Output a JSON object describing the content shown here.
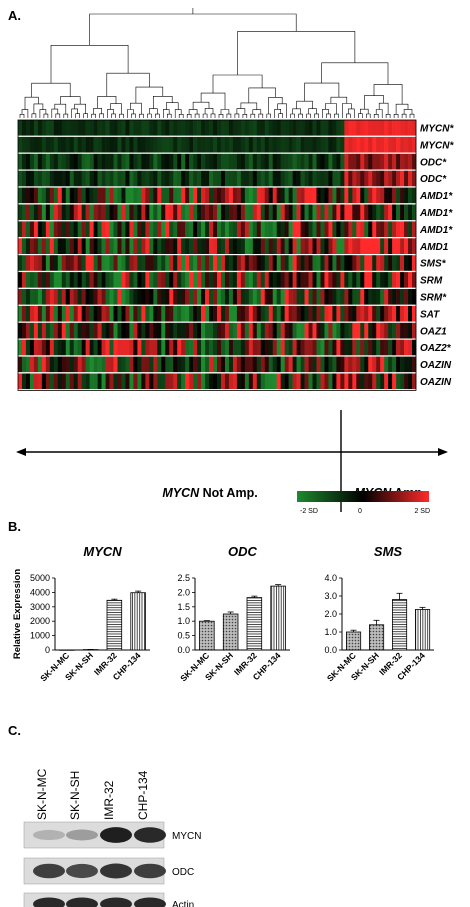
{
  "panels": {
    "a": {
      "label": "A.",
      "gene_rows": [
        "MYCN*",
        "MYCN*",
        "ODC*",
        "ODC*",
        "AMD1*",
        "AMD1*",
        "AMD1*",
        "AMD1",
        "SMS*",
        "SRM",
        "SRM*",
        "SAT",
        "OAZ1",
        "OAZ2*",
        "OAZIN",
        "OAZIN"
      ],
      "groups": {
        "not_amp": {
          "gene": "MYCN",
          "suffix": " Not Amp."
        },
        "amp": {
          "gene": "MYCN",
          "suffix": " Amp."
        }
      },
      "color_scale": {
        "min_label": "-2 SD",
        "mid_label": "0",
        "max_label": "2 SD",
        "low_color": "#1e8a2e",
        "mid_color": "#000000",
        "high_color": "#ff2a2a"
      }
    },
    "b": {
      "label": "B.",
      "ylabel": "Relative Expression"
    },
    "c": {
      "label": "C.",
      "lanes": [
        "SK-N-MC",
        "SK-N-SH",
        "IMR-32",
        "CHP-134"
      ],
      "bands": [
        "MYCN",
        "ODC",
        "Actin"
      ]
    }
  },
  "chart_data": [
    {
      "type": "bar",
      "title": "MYCN",
      "categories": [
        "SK-N-MC",
        "SK-N-SH",
        "IMR-32",
        "CHP-134"
      ],
      "values": [
        1,
        30,
        3450,
        3980
      ],
      "errors": [
        0,
        10,
        80,
        110
      ],
      "ylim": [
        0,
        5000
      ],
      "yticks": [
        "0",
        "1000",
        "2000",
        "3000",
        "4000",
        "5000"
      ]
    },
    {
      "type": "bar",
      "title": "ODC",
      "categories": [
        "SK-N-MC",
        "SK-N-SH",
        "IMR-32",
        "CHP-134"
      ],
      "values": [
        1.0,
        1.25,
        1.82,
        2.22
      ],
      "errors": [
        0.02,
        0.07,
        0.05,
        0.05
      ],
      "ylim": [
        0,
        2.5
      ],
      "yticks": [
        "0.0",
        "0.5",
        "1.0",
        "1.5",
        "2.0",
        "2.5"
      ]
    },
    {
      "type": "bar",
      "title": "SMS",
      "categories": [
        "SK-N-MC",
        "SK-N-SH",
        "IMR-32",
        "CHP-134"
      ],
      "values": [
        1.0,
        1.4,
        2.8,
        2.25
      ],
      "errors": [
        0.1,
        0.25,
        0.35,
        0.12
      ],
      "ylim": [
        0,
        4.0
      ],
      "yticks": [
        "0.0",
        "1.0",
        "2.0",
        "3.0",
        "4.0"
      ]
    }
  ]
}
